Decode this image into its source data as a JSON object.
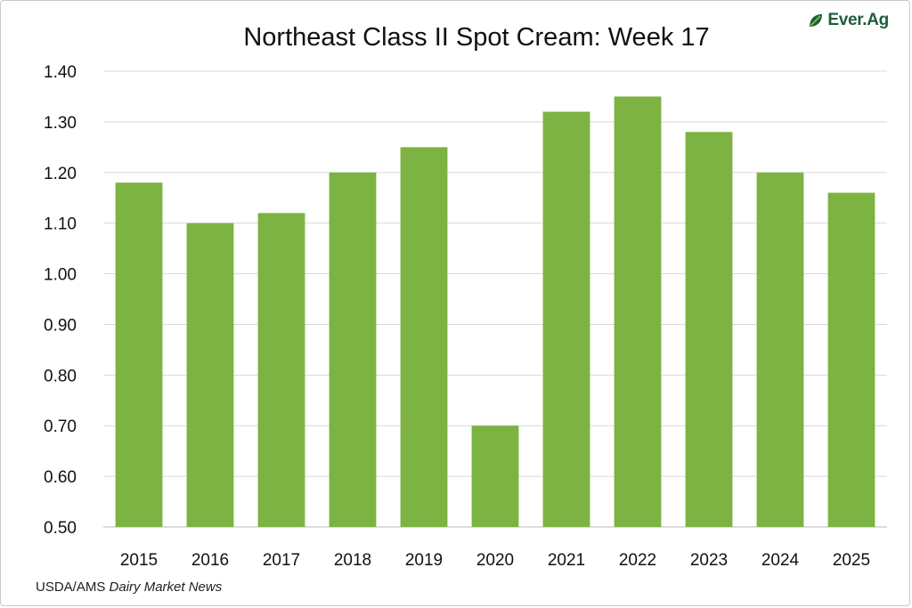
{
  "brand": {
    "logo_text": "Ever.Ag",
    "accent_color": "#1f5c3f",
    "logo_mark_color": "#7cb342"
  },
  "source": {
    "prefix": "USDA/AMS",
    "publication": "Dairy Market News"
  },
  "chart_data": {
    "type": "bar",
    "title": "Northeast Class II Spot Cream: Week 17",
    "xlabel": "",
    "ylabel": "",
    "categories": [
      "2015",
      "2016",
      "2017",
      "2018",
      "2019",
      "2020",
      "2021",
      "2022",
      "2023",
      "2024",
      "2025"
    ],
    "values": [
      1.18,
      1.1,
      1.12,
      1.2,
      1.25,
      0.7,
      1.32,
      1.35,
      1.28,
      1.2,
      1.16
    ],
    "ylim": [
      0.5,
      1.4
    ],
    "yticks": [
      "0.50",
      "0.60",
      "0.70",
      "0.80",
      "0.90",
      "1.00",
      "1.10",
      "1.20",
      "1.30",
      "1.40"
    ],
    "bar_color": "#7cb342",
    "grid": true,
    "legend": "none"
  }
}
